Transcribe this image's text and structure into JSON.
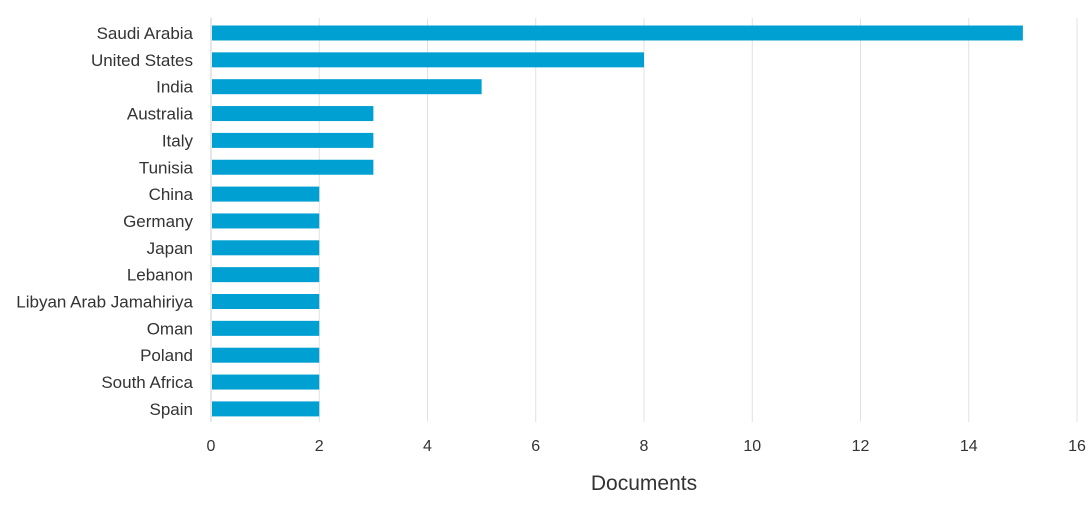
{
  "chart_data": {
    "type": "bar",
    "orientation": "horizontal",
    "categories": [
      "Saudi Arabia",
      "United States",
      "India",
      "Australia",
      "Italy",
      "Tunisia",
      "China",
      "Germany",
      "Japan",
      "Lebanon",
      "Libyan Arab Jamahiriya",
      "Oman",
      "Poland",
      "South Africa",
      "Spain"
    ],
    "values": [
      15,
      8,
      5,
      3,
      3,
      3,
      2,
      2,
      2,
      2,
      2,
      2,
      2,
      2,
      2
    ],
    "xlabel": "Documents",
    "ylabel": "",
    "xlim": [
      0,
      16
    ],
    "xticks": [
      "0",
      "2",
      "4",
      "6",
      "8",
      "10",
      "12",
      "14",
      "16"
    ],
    "grid": "vertical",
    "bar_color": "#00a0d2"
  }
}
